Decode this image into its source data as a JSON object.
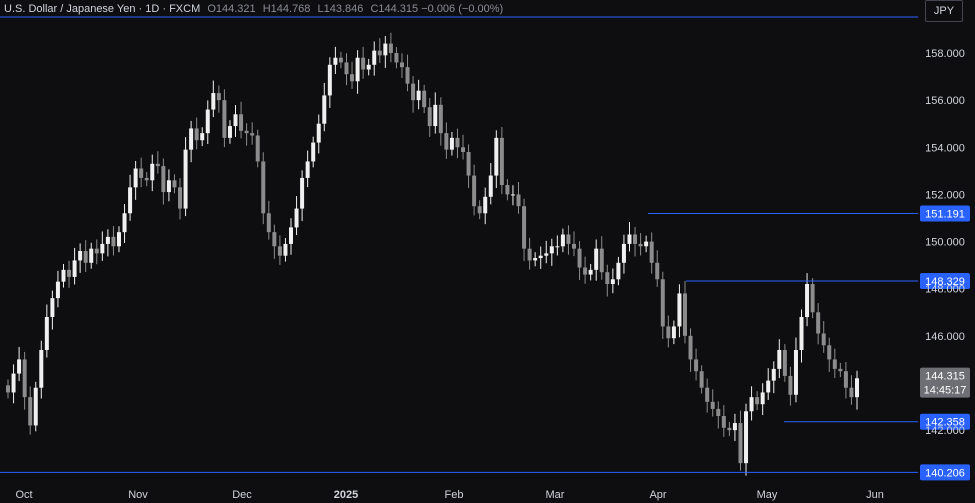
{
  "legend": {
    "symbol": "U.S. Dollar / Japanese Yen · 1D · FXCM",
    "open_key": "O",
    "open": "144.321",
    "high_key": "H",
    "high": "144.768",
    "low_key": "L",
    "low": "143.846",
    "close_key": "C",
    "close": "144.315",
    "change": "−0.006 (−0.00%)"
  },
  "currency": "JPY",
  "colors": {
    "background": "#0e0e10",
    "level_line": "#2962ff",
    "candle_up": "#f0f0f0",
    "candle_down": "#8c8c8c",
    "current_price": "#6d6f75"
  },
  "chart_data": {
    "type": "candlestick",
    "title": "",
    "x_labels": [
      "Oct",
      "Nov",
      "Dec",
      "2025",
      "Feb",
      "Mar",
      "Apr",
      "May",
      "Jun"
    ],
    "y_ticks": [
      "158.000",
      "156.000",
      "154.000",
      "152.000",
      "150.000",
      "148.000",
      "146.000",
      "142.000"
    ],
    "ylim": [
      139.8,
      159.4
    ],
    "horizontal_levels": [
      {
        "label": "151.191",
        "value": 151.191
      },
      {
        "label": "148.329",
        "value": 148.329
      },
      {
        "label": "142.358",
        "value": 142.358
      },
      {
        "label": "140.206",
        "value": 140.206
      }
    ],
    "current_price": {
      "label": "144.315",
      "value": 144.315,
      "countdown": "14:45:17"
    },
    "closes": [
      143.6,
      144.4,
      145.0,
      143.4,
      142.2,
      143.8,
      145.4,
      146.8,
      147.6,
      148.3,
      148.8,
      148.5,
      149.2,
      149.6,
      149.1,
      149.7,
      149.5,
      149.9,
      150.2,
      149.8,
      150.4,
      151.2,
      152.3,
      153.1,
      152.7,
      152.6,
      153.3,
      153.2,
      152.1,
      152.6,
      152.3,
      151.4,
      153.9,
      154.8,
      154.3,
      154.6,
      155.6,
      156.3,
      156.0,
      154.4,
      154.9,
      155.4,
      154.7,
      154.6,
      154.5,
      153.4,
      151.2,
      150.4,
      149.8,
      149.4,
      149.9,
      150.6,
      151.4,
      152.7,
      153.4,
      154.2,
      155.0,
      156.2,
      157.5,
      157.8,
      157.6,
      157.1,
      156.8,
      157.8,
      157.3,
      157.5,
      158.1,
      157.9,
      158.4,
      158.0,
      157.6,
      157.4,
      156.7,
      156.0,
      156.4,
      155.7,
      154.9,
      155.8,
      154.6,
      153.9,
      154.4,
      154.0,
      153.8,
      152.8,
      151.5,
      151.2,
      151.9,
      152.8,
      154.4,
      152.4,
      152.0,
      152.0,
      151.5,
      149.7,
      149.2,
      149.3,
      149.4,
      149.5,
      149.8,
      149.8,
      150.3,
      149.9,
      149.7,
      148.9,
      148.6,
      148.8,
      149.7,
      148.7,
      148.2,
      148.4,
      149.1,
      149.9,
      150.3,
      149.9,
      149.8,
      150.0,
      149.1,
      148.4,
      146.4,
      145.9,
      146.4,
      147.8,
      146.0,
      145.0,
      144.5,
      143.8,
      143.2,
      142.9,
      142.6,
      142.1,
      142.0,
      142.3,
      140.6,
      142.8,
      143.4,
      143.1,
      143.6,
      144.1,
      144.6,
      145.4,
      144.3,
      143.5,
      145.4,
      146.8,
      148.2,
      147.0,
      146.1,
      145.6,
      145.0,
      144.6,
      144.5,
      143.8,
      143.4,
      144.2
    ]
  }
}
